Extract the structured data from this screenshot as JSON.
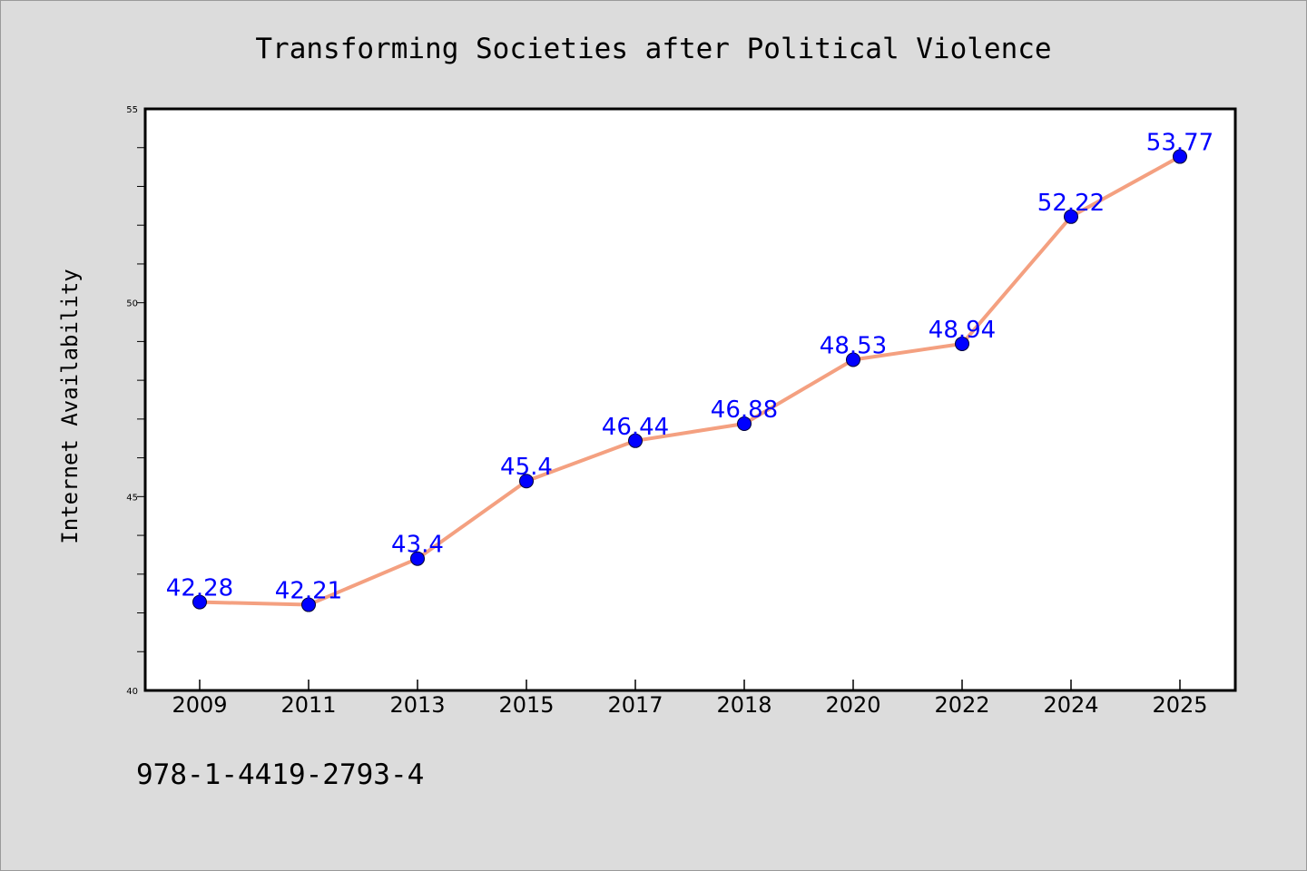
{
  "chart_data": {
    "type": "line",
    "title": "Transforming Societies after Political Violence",
    "xlabel": "",
    "ylabel": "Internet Availability",
    "categories": [
      "2009",
      "2011",
      "2013",
      "2015",
      "2017",
      "2018",
      "2020",
      "2022",
      "2024",
      "2025"
    ],
    "series": [
      {
        "values": [
          42.28,
          42.21,
          43.4,
          45.4,
          46.44,
          46.88,
          48.53,
          48.94,
          52.22,
          53.77
        ],
        "labels": [
          "42.28",
          "42.21",
          "43.4",
          "45.4",
          "46.44",
          "46.88",
          "48.53",
          "48.94",
          "52.22",
          "53.77"
        ]
      }
    ],
    "ylim": [
      40,
      55
    ],
    "yticks": [
      "40",
      "45",
      "50",
      "55"
    ],
    "grid": false,
    "colors": {
      "line": "#f4a080",
      "marker": "#0000ff",
      "data_label": "#0000ff",
      "background": "#dcdcdc",
      "plot_area": "#ffffff"
    }
  },
  "footer": {
    "isbn": "978-1-4419-2793-4"
  }
}
